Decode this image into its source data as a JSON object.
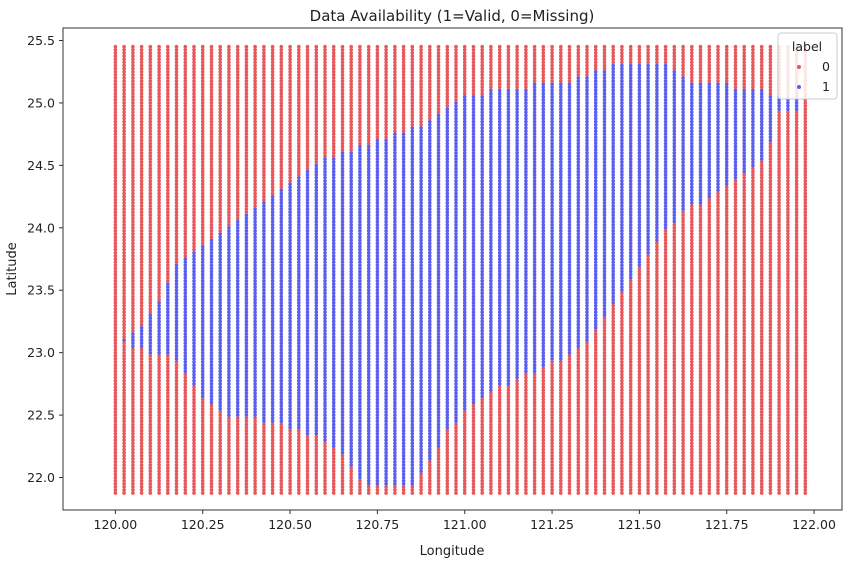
{
  "chart_data": {
    "type": "scatter",
    "title": "Data Availability (1=Valid, 0=Missing)",
    "xlabel": "Longitude",
    "ylabel": "Latitude",
    "xlim": [
      119.85,
      122.08
    ],
    "ylim": [
      21.74,
      25.6
    ],
    "xticks": [
      120.0,
      120.25,
      120.5,
      120.75,
      121.0,
      121.25,
      121.5,
      121.75,
      122.0
    ],
    "xtick_labels": [
      "120.00",
      "120.25",
      "120.50",
      "120.75",
      "121.00",
      "121.25",
      "121.50",
      "121.75",
      "122.00"
    ],
    "yticks": [
      22.0,
      22.5,
      23.0,
      23.5,
      24.0,
      24.5,
      25.0,
      25.5
    ],
    "ytick_labels": [
      "22.0",
      "22.5",
      "23.0",
      "23.5",
      "24.0",
      "24.5",
      "25.0",
      "25.5"
    ],
    "grid": {
      "lon_start": 120.0,
      "lon_step": 0.025,
      "lon_count": 80,
      "lat_start": 21.875,
      "lat_step": 0.025,
      "lat_count": 144
    },
    "valid_region": {
      "lon": [
        120.0,
        120.025,
        120.05,
        120.075,
        120.1,
        120.125,
        120.15,
        120.175,
        120.2,
        120.225,
        120.25,
        120.275,
        120.3,
        120.325,
        120.35,
        120.375,
        120.4,
        120.425,
        120.45,
        120.475,
        120.5,
        120.525,
        120.55,
        120.575,
        120.6,
        120.625,
        120.65,
        120.675,
        120.7,
        120.725,
        120.75,
        120.775,
        120.8,
        120.825,
        120.85,
        120.875,
        120.9,
        120.925,
        120.95,
        120.975,
        121.0,
        121.025,
        121.05,
        121.075,
        121.1,
        121.125,
        121.15,
        121.175,
        121.2,
        121.225,
        121.25,
        121.275,
        121.3,
        121.325,
        121.35,
        121.375,
        121.4,
        121.425,
        121.45,
        121.475,
        121.5,
        121.525,
        121.55,
        121.575,
        121.6,
        121.625,
        121.65,
        121.675,
        121.7,
        121.725,
        121.75,
        121.775,
        121.8,
        121.825,
        121.85,
        121.875,
        121.9,
        121.925,
        121.95,
        121.975
      ],
      "lat_min": [
        null,
        23.1,
        23.05,
        23.05,
        23.0,
        23.0,
        23.0,
        22.95,
        22.85,
        22.75,
        22.65,
        22.6,
        22.55,
        22.5,
        22.5,
        22.5,
        22.5,
        22.45,
        22.45,
        22.45,
        22.4,
        22.4,
        22.35,
        22.35,
        22.3,
        22.25,
        22.2,
        22.1,
        22.0,
        21.95,
        21.95,
        21.95,
        21.95,
        21.95,
        21.95,
        22.05,
        22.15,
        22.25,
        22.4,
        22.45,
        22.55,
        22.6,
        22.65,
        22.7,
        22.75,
        22.75,
        22.8,
        22.85,
        22.85,
        22.9,
        22.95,
        22.95,
        23.0,
        23.05,
        23.1,
        23.2,
        23.3,
        23.4,
        23.5,
        23.6,
        23.7,
        23.8,
        23.9,
        24.0,
        24.05,
        24.15,
        24.2,
        24.2,
        24.25,
        24.3,
        24.35,
        24.4,
        24.45,
        24.5,
        24.55,
        24.7,
        24.95,
        24.95,
        24.95,
        null
      ],
      "lat_max": [
        null,
        23.1,
        23.15,
        23.2,
        23.3,
        23.4,
        23.55,
        23.7,
        23.75,
        23.8,
        23.85,
        23.9,
        23.95,
        24.0,
        24.05,
        24.1,
        24.15,
        24.2,
        24.25,
        24.3,
        24.35,
        24.4,
        24.45,
        24.5,
        24.55,
        24.55,
        24.6,
        24.6,
        24.65,
        24.65,
        24.7,
        24.7,
        24.75,
        24.75,
        24.8,
        24.8,
        24.85,
        24.9,
        24.95,
        25.0,
        25.05,
        25.05,
        25.05,
        25.1,
        25.1,
        25.1,
        25.1,
        25.1,
        25.15,
        25.15,
        25.15,
        25.15,
        25.15,
        25.2,
        25.2,
        25.25,
        25.25,
        25.3,
        25.3,
        25.3,
        25.3,
        25.3,
        25.3,
        25.3,
        25.25,
        25.2,
        25.15,
        25.15,
        25.15,
        25.15,
        25.15,
        25.1,
        25.1,
        25.1,
        25.1,
        25.05,
        25.05,
        25.05,
        25.05,
        null
      ]
    },
    "series": [
      {
        "label": "0",
        "color": "#e8575b"
      },
      {
        "label": "1",
        "color": "#5b5ff0"
      }
    ],
    "legend": {
      "title": "label",
      "placement": "top-right"
    }
  }
}
